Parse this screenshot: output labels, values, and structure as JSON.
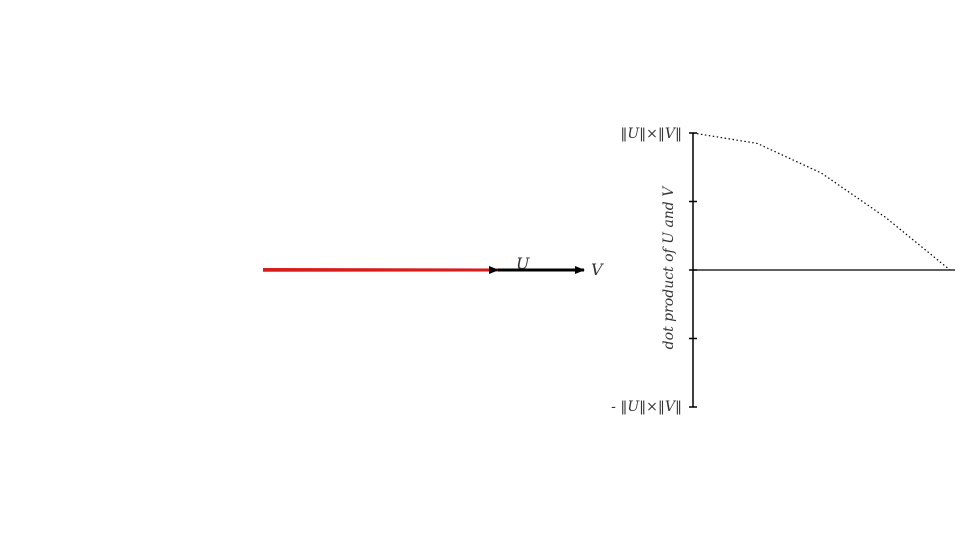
{
  "vectors": {
    "u": {
      "label": "U",
      "color": "#d81c1c"
    },
    "v": {
      "label": "V",
      "color": "#000000"
    }
  },
  "chart_data": {
    "type": "line",
    "ylabel": "dot product of U and V",
    "y_tick_labels": {
      "max": "‖U‖×‖V‖",
      "min": "- ‖U‖×‖V‖"
    },
    "ylim": [
      -1,
      1
    ],
    "y_ticks": [
      -1,
      -0.5,
      0,
      0.5,
      1
    ],
    "series": [
      {
        "style": "dotted",
        "x": [
          0,
          0.25,
          0.5,
          0.75,
          1
        ],
        "values": [
          1,
          0.924,
          0.707,
          0.383,
          0
        ]
      }
    ],
    "grid": false
  }
}
